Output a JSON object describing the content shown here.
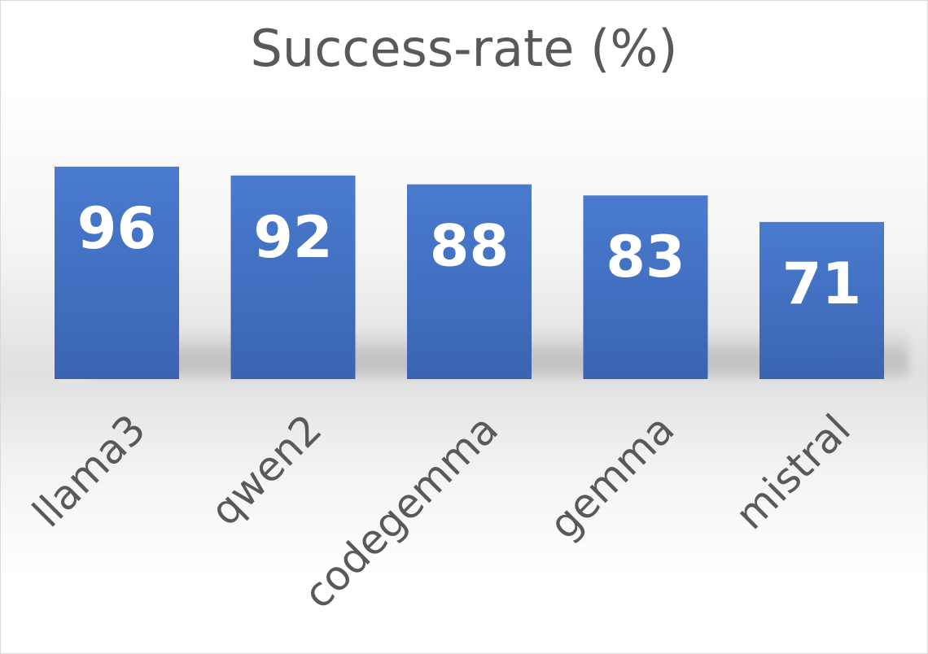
{
  "chart_data": {
    "type": "bar",
    "title": "Success-rate (%)",
    "categories": [
      "llama3",
      "qwen2",
      "codegemma",
      "gemma",
      "mistral"
    ],
    "values": [
      96,
      92,
      88,
      83,
      71
    ],
    "data_labels": [
      "96",
      "92",
      "88",
      "83",
      "71"
    ],
    "ylim": [
      0,
      100
    ],
    "xlabel": "",
    "ylabel": "",
    "grid": false,
    "legend": "none",
    "bar_color": "#4472c4",
    "label_color": "#ffffff",
    "axis_text_color": "#595959"
  }
}
